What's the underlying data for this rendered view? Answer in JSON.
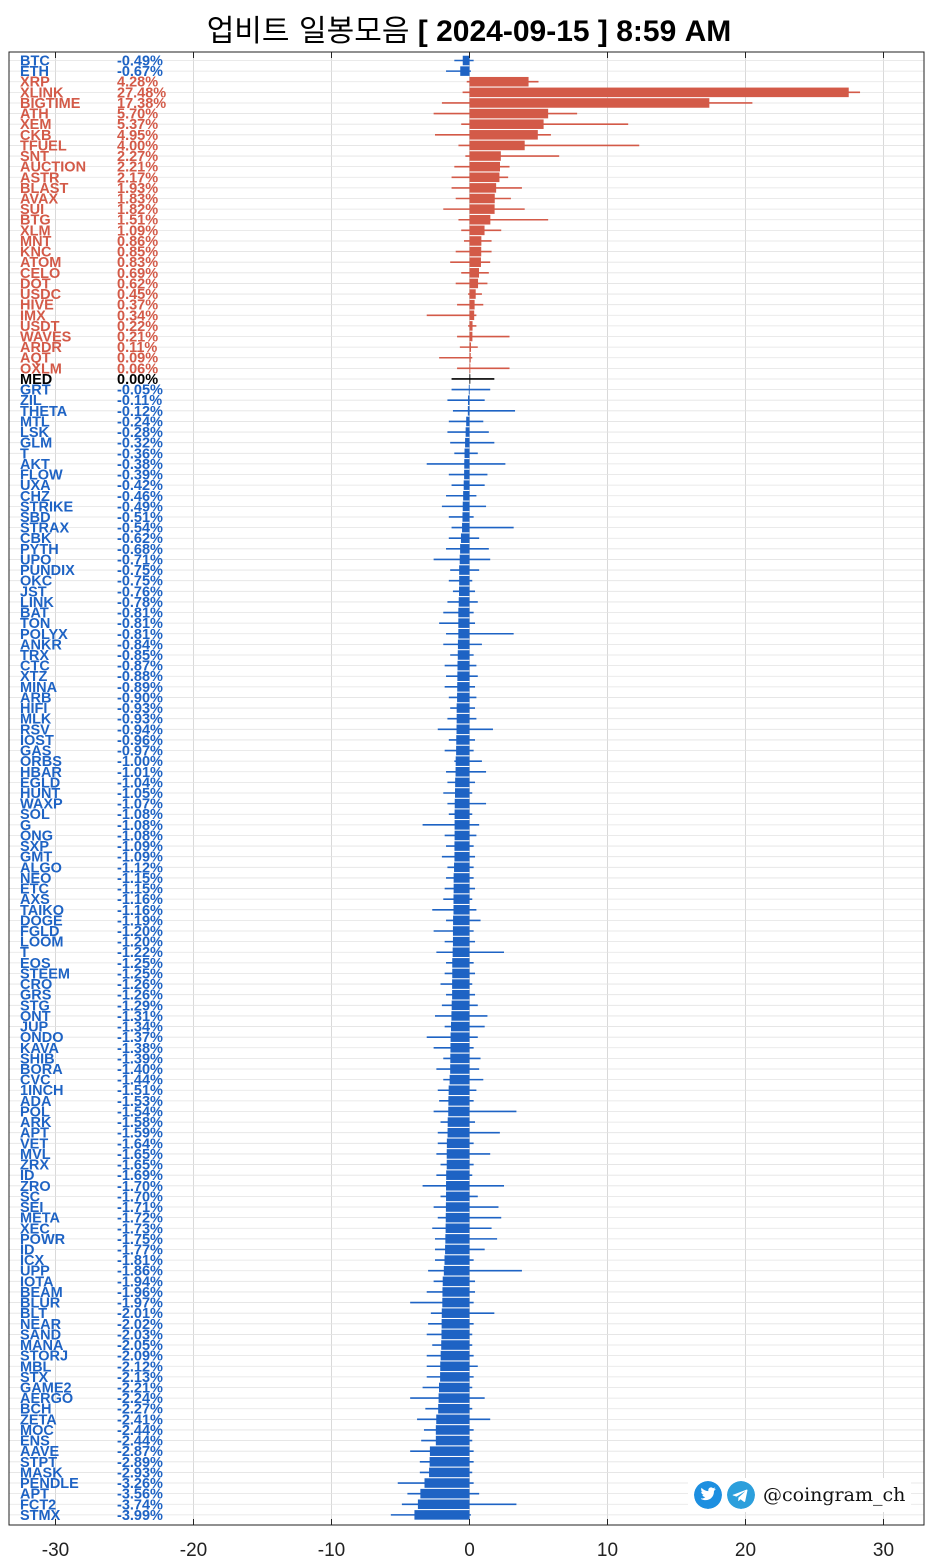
{
  "title_prefix": "업비트 일봉모음",
  "title_suffix": "[ 2024-09-15 ]  8:59 AM",
  "watermark": "@coingram_ch",
  "watermark_icons": [
    "twitter-icon",
    "telegram-icon"
  ],
  "colors": {
    "up": "#d35a48",
    "down": "#1e63c4",
    "median": "#000000",
    "grid": "#d9d9d9"
  },
  "chart_data": {
    "type": "bar",
    "orientation": "horizontal",
    "xlim": [
      -32,
      33
    ],
    "xticks": [
      -30,
      -20,
      -10,
      0,
      10,
      20,
      30
    ],
    "grid": true,
    "rows": [
      {
        "name": "BTC",
        "pct": "-0.49%",
        "value": -0.49,
        "low": -1.1,
        "high": 0.3
      },
      {
        "name": "ETH",
        "pct": "-0.67%",
        "value": -0.67,
        "low": -1.7,
        "high": 0.1
      },
      {
        "name": "XRP",
        "pct": "4.28%",
        "value": 4.28,
        "low": -0.2,
        "high": 5.0
      },
      {
        "name": "XLINK",
        "pct": "27.48%",
        "value": 27.48,
        "low": -0.5,
        "high": 28.3
      },
      {
        "name": "BIGTIME",
        "pct": "17.38%",
        "value": 17.38,
        "low": -2.0,
        "high": 20.5
      },
      {
        "name": "ATH",
        "pct": "5.70%",
        "value": 5.7,
        "low": -2.6,
        "high": 7.8
      },
      {
        "name": "XEM",
        "pct": "5.37%",
        "value": 5.37,
        "low": -0.6,
        "high": 11.5
      },
      {
        "name": "CKB",
        "pct": "4.95%",
        "value": 4.95,
        "low": -2.5,
        "high": 5.9
      },
      {
        "name": "TFUEL",
        "pct": "4.00%",
        "value": 4.0,
        "low": -0.8,
        "high": 12.3
      },
      {
        "name": "SNT",
        "pct": "2.27%",
        "value": 2.27,
        "low": -0.3,
        "high": 6.5
      },
      {
        "name": "AUCTION",
        "pct": "2.21%",
        "value": 2.21,
        "low": -1.1,
        "high": 2.9
      },
      {
        "name": "ASTR",
        "pct": "2.17%",
        "value": 2.17,
        "low": -1.3,
        "high": 2.8
      },
      {
        "name": "BLAST",
        "pct": "1.93%",
        "value": 1.93,
        "low": -1.3,
        "high": 3.8
      },
      {
        "name": "AVAX",
        "pct": "1.83%",
        "value": 1.83,
        "low": -1.0,
        "high": 3.0
      },
      {
        "name": "SUI",
        "pct": "1.82%",
        "value": 1.82,
        "low": -1.9,
        "high": 4.0
      },
      {
        "name": "BTG",
        "pct": "1.51%",
        "value": 1.51,
        "low": -0.8,
        "high": 5.7
      },
      {
        "name": "XLM",
        "pct": "1.09%",
        "value": 1.09,
        "low": -0.6,
        "high": 2.3
      },
      {
        "name": "MNT",
        "pct": "0.86%",
        "value": 0.86,
        "low": -0.4,
        "high": 1.6
      },
      {
        "name": "KNC",
        "pct": "0.85%",
        "value": 0.85,
        "low": -1.0,
        "high": 1.6
      },
      {
        "name": "ATOM",
        "pct": "0.83%",
        "value": 0.83,
        "low": -1.4,
        "high": 1.5
      },
      {
        "name": "CELO",
        "pct": "0.69%",
        "value": 0.69,
        "low": -0.6,
        "high": 1.4
      },
      {
        "name": "DOT",
        "pct": "0.62%",
        "value": 0.62,
        "low": -1.0,
        "high": 1.3
      },
      {
        "name": "USDC",
        "pct": "0.45%",
        "value": 0.45,
        "low": -0.1,
        "high": 0.9
      },
      {
        "name": "HIVE",
        "pct": "0.37%",
        "value": 0.37,
        "low": -0.9,
        "high": 1.0
      },
      {
        "name": "IMX",
        "pct": "0.34%",
        "value": 0.34,
        "low": -3.1,
        "high": 0.5
      },
      {
        "name": "USDT",
        "pct": "0.22%",
        "value": 0.22,
        "low": -0.1,
        "high": 0.5
      },
      {
        "name": "WAVES",
        "pct": "0.21%",
        "value": 0.21,
        "low": -0.9,
        "high": 2.9
      },
      {
        "name": "ARDR",
        "pct": "0.11%",
        "value": 0.11,
        "low": -0.7,
        "high": 0.6
      },
      {
        "name": "AQT",
        "pct": "0.09%",
        "value": 0.09,
        "low": -2.2,
        "high": 0.2
      },
      {
        "name": "OXLM",
        "pct": "0.06%",
        "value": 0.06,
        "low": -0.9,
        "high": 2.9
      },
      {
        "name": "MED",
        "pct": "0.00%",
        "value": 0.0,
        "low": -1.3,
        "high": 1.8
      },
      {
        "name": "GRT",
        "pct": "-0.05%",
        "value": -0.05,
        "low": -1.3,
        "high": 1.5
      },
      {
        "name": "ZIL",
        "pct": "-0.11%",
        "value": -0.11,
        "low": -1.6,
        "high": 1.1
      },
      {
        "name": "THETA",
        "pct": "-0.12%",
        "value": -0.12,
        "low": -1.2,
        "high": 3.3
      },
      {
        "name": "MTL",
        "pct": "-0.24%",
        "value": -0.24,
        "low": -1.5,
        "high": 1.0
      },
      {
        "name": "LSK",
        "pct": "-0.28%",
        "value": -0.28,
        "low": -1.6,
        "high": 1.4
      },
      {
        "name": "GLM",
        "pct": "-0.32%",
        "value": -0.32,
        "low": -1.4,
        "high": 1.8
      },
      {
        "name": "T",
        "pct": "-0.36%",
        "value": -0.36,
        "low": -1.1,
        "high": 0.6
      },
      {
        "name": "AKT",
        "pct": "-0.38%",
        "value": -0.38,
        "low": -3.1,
        "high": 2.6
      },
      {
        "name": "FLOW",
        "pct": "-0.39%",
        "value": -0.39,
        "low": -1.5,
        "high": 1.3
      },
      {
        "name": "UXA",
        "pct": "-0.42%",
        "value": -0.42,
        "low": -1.3,
        "high": 1.1
      },
      {
        "name": "CHZ",
        "pct": "-0.46%",
        "value": -0.46,
        "low": -1.7,
        "high": 0.5
      },
      {
        "name": "STRIKE",
        "pct": "-0.49%",
        "value": -0.49,
        "low": -2.0,
        "high": 1.2
      },
      {
        "name": "SBD",
        "pct": "-0.51%",
        "value": -0.51,
        "low": -1.5,
        "high": 0.3
      },
      {
        "name": "STRAX",
        "pct": "-0.54%",
        "value": -0.54,
        "low": -1.3,
        "high": 3.2
      },
      {
        "name": "CBK",
        "pct": "-0.62%",
        "value": -0.62,
        "low": -1.5,
        "high": 0.7
      },
      {
        "name": "PYTH",
        "pct": "-0.68%",
        "value": -0.68,
        "low": -1.7,
        "high": 1.4
      },
      {
        "name": "UPO",
        "pct": "-0.71%",
        "value": -0.71,
        "low": -2.6,
        "high": 1.5
      },
      {
        "name": "PUNDIX",
        "pct": "-0.75%",
        "value": -0.75,
        "low": -1.4,
        "high": 0.7
      },
      {
        "name": "OKC",
        "pct": "-0.75%",
        "value": -0.75,
        "low": -1.5,
        "high": 0.2
      },
      {
        "name": "JST",
        "pct": "-0.76%",
        "value": -0.76,
        "low": -1.2,
        "high": 0.4
      },
      {
        "name": "LINK",
        "pct": "-0.78%",
        "value": -0.78,
        "low": -1.6,
        "high": 0.6
      },
      {
        "name": "BAT",
        "pct": "-0.81%",
        "value": -0.81,
        "low": -1.9,
        "high": 0.3
      },
      {
        "name": "TON",
        "pct": "-0.81%",
        "value": -0.81,
        "low": -2.2,
        "high": 0.4
      },
      {
        "name": "POLYX",
        "pct": "-0.81%",
        "value": -0.81,
        "low": -1.7,
        "high": 3.2
      },
      {
        "name": "ANKR",
        "pct": "-0.84%",
        "value": -0.84,
        "low": -1.9,
        "high": 0.9
      },
      {
        "name": "TRX",
        "pct": "-0.85%",
        "value": -0.85,
        "low": -1.4,
        "high": 0.3
      },
      {
        "name": "CTC",
        "pct": "-0.87%",
        "value": -0.87,
        "low": -1.8,
        "high": 0.5
      },
      {
        "name": "XTZ",
        "pct": "-0.88%",
        "value": -0.88,
        "low": -1.7,
        "high": 0.6
      },
      {
        "name": "MINA",
        "pct": "-0.89%",
        "value": -0.89,
        "low": -1.8,
        "high": 0.4
      },
      {
        "name": "ARB",
        "pct": "-0.90%",
        "value": -0.9,
        "low": -1.5,
        "high": 0.5
      },
      {
        "name": "HIFI",
        "pct": "-0.93%",
        "value": -0.93,
        "low": -1.4,
        "high": 0.4
      },
      {
        "name": "MLK",
        "pct": "-0.93%",
        "value": -0.93,
        "low": -1.6,
        "high": 0.5
      },
      {
        "name": "RSV",
        "pct": "-0.94%",
        "value": -0.94,
        "low": -2.3,
        "high": 1.7
      },
      {
        "name": "IOST",
        "pct": "-0.96%",
        "value": -0.96,
        "low": -1.5,
        "high": 0.4
      },
      {
        "name": "GAS",
        "pct": "-0.97%",
        "value": -0.97,
        "low": -1.8,
        "high": 0.3
      },
      {
        "name": "ORBS",
        "pct": "-1.00%",
        "value": -1.0,
        "low": -1.1,
        "high": 0.9
      },
      {
        "name": "HBAR",
        "pct": "-1.01%",
        "value": -1.01,
        "low": -1.7,
        "high": 1.2
      },
      {
        "name": "EGLD",
        "pct": "-1.04%",
        "value": -1.04,
        "low": -1.6,
        "high": 0.4
      },
      {
        "name": "HUNT",
        "pct": "-1.05%",
        "value": -1.05,
        "low": -1.9,
        "high": 0.2
      },
      {
        "name": "WAXP",
        "pct": "-1.07%",
        "value": -1.07,
        "low": -1.6,
        "high": 1.2
      },
      {
        "name": "SOL",
        "pct": "-1.08%",
        "value": -1.08,
        "low": -1.5,
        "high": 0.2
      },
      {
        "name": "G",
        "pct": "-1.08%",
        "value": -1.08,
        "low": -3.4,
        "high": 0.7
      },
      {
        "name": "ONG",
        "pct": "-1.08%",
        "value": -1.08,
        "low": -1.8,
        "high": 0.5
      },
      {
        "name": "SXP",
        "pct": "-1.09%",
        "value": -1.09,
        "low": -1.7,
        "high": 0.3
      },
      {
        "name": "GMT",
        "pct": "-1.09%",
        "value": -1.09,
        "low": -2.0,
        "high": 0.4
      },
      {
        "name": "ALGO",
        "pct": "-1.12%",
        "value": -1.12,
        "low": -1.6,
        "high": 0.3
      },
      {
        "name": "NEO",
        "pct": "-1.15%",
        "value": -1.15,
        "low": -1.7,
        "high": 0.3
      },
      {
        "name": "ETC",
        "pct": "-1.15%",
        "value": -1.15,
        "low": -1.8,
        "high": 0.4
      },
      {
        "name": "AXS",
        "pct": "-1.16%",
        "value": -1.16,
        "low": -1.9,
        "high": 0.2
      },
      {
        "name": "TAIKO",
        "pct": "-1.16%",
        "value": -1.16,
        "low": -2.7,
        "high": 0.5
      },
      {
        "name": "DOGE",
        "pct": "-1.19%",
        "value": -1.19,
        "low": -1.7,
        "high": 0.8
      },
      {
        "name": "FGLD",
        "pct": "-1.20%",
        "value": -1.2,
        "low": -2.6,
        "high": 0.3
      },
      {
        "name": "LOOM",
        "pct": "-1.20%",
        "value": -1.2,
        "low": -1.8,
        "high": 0.4
      },
      {
        "name": "T",
        "pct": "-1.22%",
        "value": -1.22,
        "low": -2.4,
        "high": 2.5
      },
      {
        "name": "EOS",
        "pct": "-1.25%",
        "value": -1.25,
        "low": -1.7,
        "high": 0.3
      },
      {
        "name": "STEEM",
        "pct": "-1.25%",
        "value": -1.25,
        "low": -1.8,
        "high": 0.4
      },
      {
        "name": "CRO",
        "pct": "-1.26%",
        "value": -1.26,
        "low": -2.1,
        "high": 0.2
      },
      {
        "name": "GRS",
        "pct": "-1.26%",
        "value": -1.26,
        "low": -1.7,
        "high": 0.4
      },
      {
        "name": "STG",
        "pct": "-1.29%",
        "value": -1.29,
        "low": -2.0,
        "high": 0.6
      },
      {
        "name": "ONT",
        "pct": "-1.31%",
        "value": -1.31,
        "low": -2.5,
        "high": 1.3
      },
      {
        "name": "JUP",
        "pct": "-1.34%",
        "value": -1.34,
        "low": -1.8,
        "high": 1.1
      },
      {
        "name": "ONDO",
        "pct": "-1.37%",
        "value": -1.37,
        "low": -3.1,
        "high": 0.6
      },
      {
        "name": "KAVA",
        "pct": "-1.38%",
        "value": -1.38,
        "low": -2.6,
        "high": 0.3
      },
      {
        "name": "SHIB",
        "pct": "-1.39%",
        "value": -1.39,
        "low": -1.9,
        "high": 0.8
      },
      {
        "name": "BORA",
        "pct": "-1.40%",
        "value": -1.4,
        "low": -2.4,
        "high": 0.7
      },
      {
        "name": "CVC",
        "pct": "-1.44%",
        "value": -1.44,
        "low": -1.9,
        "high": 1.0
      },
      {
        "name": "1INCH",
        "pct": "-1.51%",
        "value": -1.51,
        "low": -2.3,
        "high": 0.5
      },
      {
        "name": "ADA",
        "pct": "-1.53%",
        "value": -1.53,
        "low": -2.2,
        "high": 0.3
      },
      {
        "name": "POL",
        "pct": "-1.54%",
        "value": -1.54,
        "low": -2.6,
        "high": 3.4
      },
      {
        "name": "ARK",
        "pct": "-1.58%",
        "value": -1.58,
        "low": -2.1,
        "high": 0.4
      },
      {
        "name": "APT",
        "pct": "-1.59%",
        "value": -1.59,
        "low": -2.3,
        "high": 2.2
      },
      {
        "name": "VET",
        "pct": "-1.64%",
        "value": -1.64,
        "low": -2.3,
        "high": 0.3
      },
      {
        "name": "MVL",
        "pct": "-1.65%",
        "value": -1.65,
        "low": -2.4,
        "high": 1.5
      },
      {
        "name": "ZRX",
        "pct": "-1.65%",
        "value": -1.65,
        "low": -2.1,
        "high": 0.3
      },
      {
        "name": "ID",
        "pct": "-1.69%",
        "value": -1.69,
        "low": -2.4,
        "high": 0.2
      },
      {
        "name": "ZRO",
        "pct": "-1.70%",
        "value": -1.7,
        "low": -3.4,
        "high": 2.5
      },
      {
        "name": "SC",
        "pct": "-1.70%",
        "value": -1.7,
        "low": -2.1,
        "high": 0.6
      },
      {
        "name": "SEI",
        "pct": "-1.71%",
        "value": -1.71,
        "low": -2.6,
        "high": 2.1
      },
      {
        "name": "META",
        "pct": "-1.72%",
        "value": -1.72,
        "low": -2.3,
        "high": 2.3
      },
      {
        "name": "XEC",
        "pct": "-1.73%",
        "value": -1.73,
        "low": -2.7,
        "high": 1.6
      },
      {
        "name": "POWR",
        "pct": "-1.75%",
        "value": -1.75,
        "low": -2.5,
        "high": 2.0
      },
      {
        "name": "ID",
        "pct": "-1.77%",
        "value": -1.77,
        "low": -2.5,
        "high": 1.1
      },
      {
        "name": "ICX",
        "pct": "-1.81%",
        "value": -1.81,
        "low": -2.5,
        "high": 0.3
      },
      {
        "name": "UPP",
        "pct": "-1.86%",
        "value": -1.86,
        "low": -3.0,
        "high": 3.8
      },
      {
        "name": "IOTA",
        "pct": "-1.94%",
        "value": -1.94,
        "low": -2.6,
        "high": 0.4
      },
      {
        "name": "BEAM",
        "pct": "-1.96%",
        "value": -1.96,
        "low": -3.1,
        "high": 0.4
      },
      {
        "name": "BLUR",
        "pct": "-1.97%",
        "value": -1.97,
        "low": -4.3,
        "high": 0.3
      },
      {
        "name": "BLT",
        "pct": "-2.01%",
        "value": -2.01,
        "low": -2.8,
        "high": 1.8
      },
      {
        "name": "NEAR",
        "pct": "-2.02%",
        "value": -2.02,
        "low": -3.0,
        "high": 0.3
      },
      {
        "name": "SAND",
        "pct": "-2.03%",
        "value": -2.03,
        "low": -3.1,
        "high": 0.2
      },
      {
        "name": "MANA",
        "pct": "-2.05%",
        "value": -2.05,
        "low": -2.7,
        "high": 0.2
      },
      {
        "name": "STORJ",
        "pct": "-2.09%",
        "value": -2.09,
        "low": -3.1,
        "high": 0.3
      },
      {
        "name": "MBL",
        "pct": "-2.12%",
        "value": -2.12,
        "low": -3.1,
        "high": 0.6
      },
      {
        "name": "STX",
        "pct": "-2.13%",
        "value": -2.13,
        "low": -3.1,
        "high": 0.3
      },
      {
        "name": "GAME2",
        "pct": "-2.21%",
        "value": -2.21,
        "low": -3.4,
        "high": 0.2
      },
      {
        "name": "AERGO",
        "pct": "-2.24%",
        "value": -2.24,
        "low": -4.3,
        "high": 1.1
      },
      {
        "name": "BCH",
        "pct": "-2.27%",
        "value": -2.27,
        "low": -3.2,
        "high": 0.2
      },
      {
        "name": "ZETA",
        "pct": "-2.41%",
        "value": -2.41,
        "low": -3.8,
        "high": 1.5
      },
      {
        "name": "MOC",
        "pct": "-2.44%",
        "value": -2.44,
        "low": -3.3,
        "high": 0.3
      },
      {
        "name": "ENS",
        "pct": "-2.44%",
        "value": -2.44,
        "low": -3.5,
        "high": 0.2
      },
      {
        "name": "AAVE",
        "pct": "-2.87%",
        "value": -2.87,
        "low": -4.3,
        "high": 0.3
      },
      {
        "name": "STPT",
        "pct": "-2.89%",
        "value": -2.89,
        "low": -3.6,
        "high": 0.3
      },
      {
        "name": "MASK",
        "pct": "-2.93%",
        "value": -2.93,
        "low": -3.6,
        "high": 0.2
      },
      {
        "name": "PENDLE",
        "pct": "-3.26%",
        "value": -3.26,
        "low": -5.2,
        "high": 0.3
      },
      {
        "name": "APT",
        "pct": "-3.56%",
        "value": -3.56,
        "low": -4.5,
        "high": 0.7
      },
      {
        "name": "FCT2",
        "pct": "-3.74%",
        "value": -3.74,
        "low": -4.9,
        "high": 3.4
      },
      {
        "name": "STMX",
        "pct": "-3.99%",
        "value": -3.99,
        "low": -5.7,
        "high": 0.1
      }
    ]
  }
}
